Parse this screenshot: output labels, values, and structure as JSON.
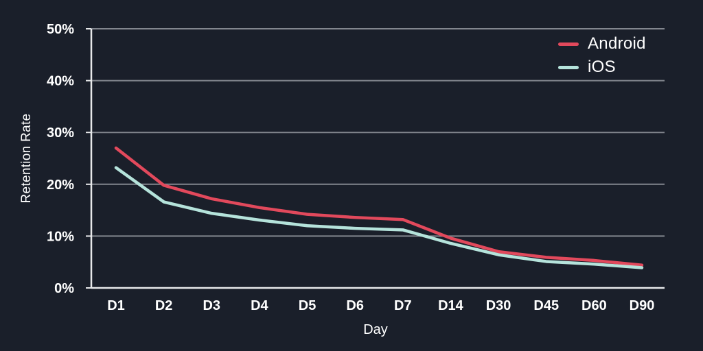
{
  "colors": {
    "background": "#1a1f2a",
    "grid": "#82868e",
    "axis": "#e8e9eb",
    "text": "#ffffff"
  },
  "chart_data": {
    "type": "line",
    "title": "",
    "xlabel": "Day",
    "ylabel": "Retention Rate",
    "categories": [
      "D1",
      "D2",
      "D3",
      "D4",
      "D5",
      "D6",
      "D7",
      "D14",
      "D30",
      "D45",
      "D60",
      "D90"
    ],
    "y_ticks": [
      "0%",
      "10%",
      "20%",
      "30%",
      "40%",
      "50%"
    ],
    "ylim": [
      0,
      50
    ],
    "grid": true,
    "legend_position": "top-right",
    "series": [
      {
        "name": "Android",
        "color": "#e2495c",
        "values": [
          27.0,
          19.8,
          17.2,
          15.5,
          14.2,
          13.6,
          13.2,
          9.6,
          7.0,
          5.9,
          5.3,
          4.4
        ]
      },
      {
        "name": "iOS",
        "color": "#b5e3db",
        "values": [
          23.2,
          16.6,
          14.4,
          13.1,
          12.0,
          11.5,
          11.2,
          8.6,
          6.4,
          5.1,
          4.6,
          3.9
        ]
      }
    ]
  }
}
